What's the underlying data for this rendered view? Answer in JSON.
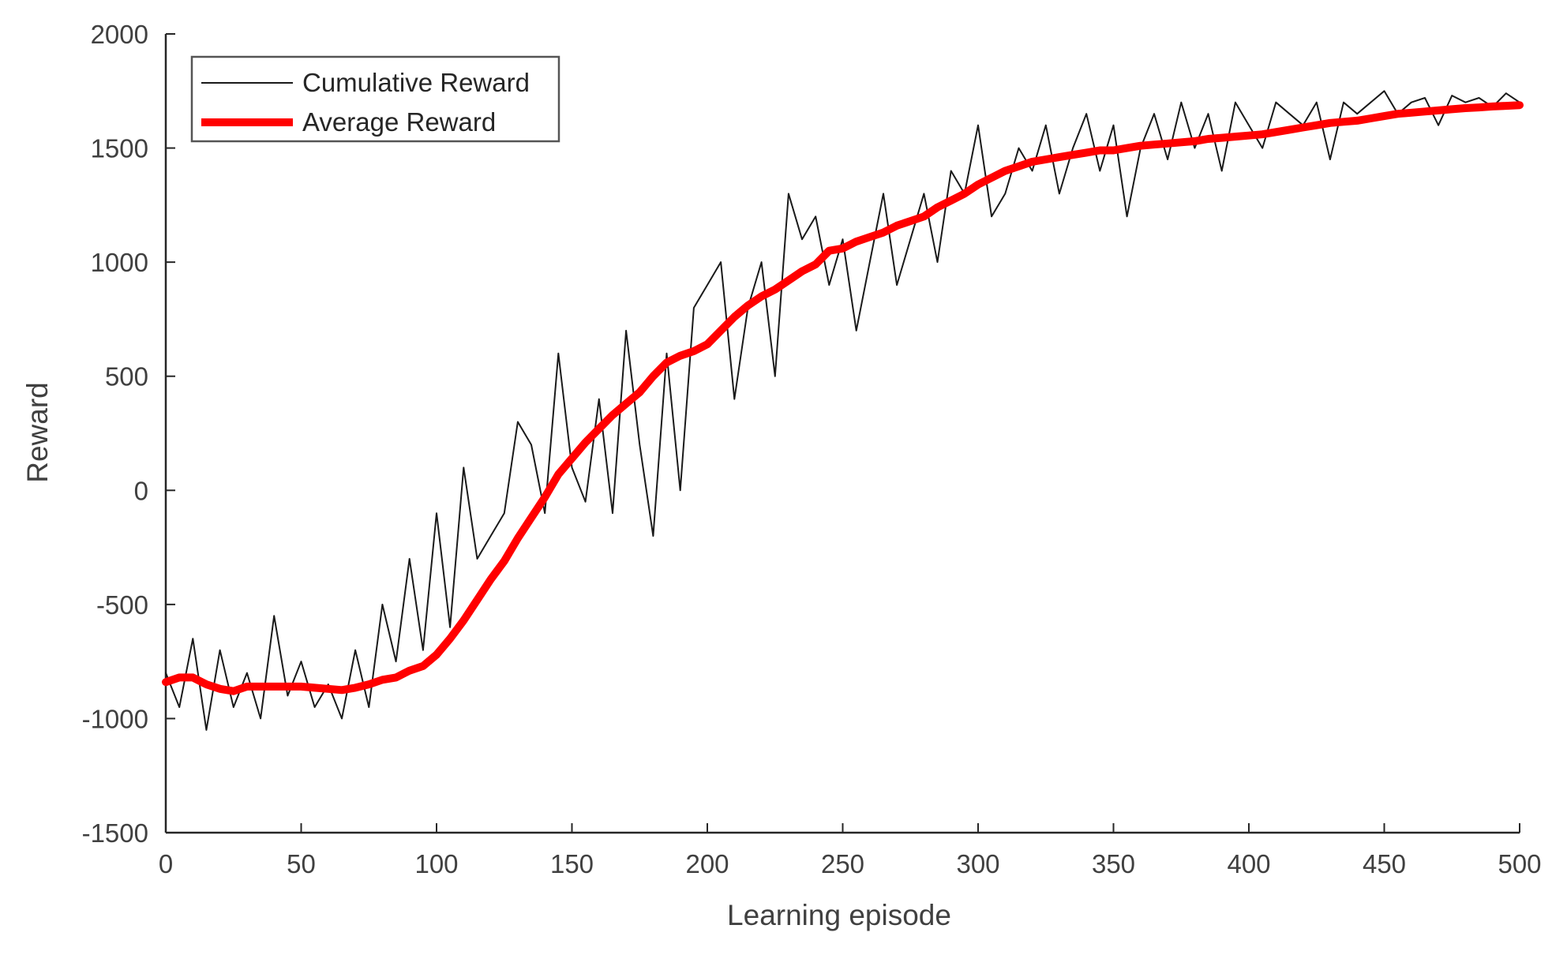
{
  "chart_data": {
    "type": "line",
    "title": "",
    "xlabel": "Learning episode",
    "ylabel": "Reward",
    "xlim": [
      0,
      500
    ],
    "ylim": [
      -1500,
      2000
    ],
    "xticks": [
      0,
      50,
      100,
      150,
      200,
      250,
      300,
      350,
      400,
      450,
      500
    ],
    "yticks": [
      -1500,
      -1000,
      -500,
      0,
      500,
      1000,
      1500,
      2000
    ],
    "grid": false,
    "legend_position": "top-left",
    "series": [
      {
        "name": "Cumulative Reward",
        "color": "#1a1a1a",
        "style": "thin",
        "x": [
          0,
          5,
          10,
          15,
          20,
          25,
          30,
          35,
          40,
          45,
          50,
          55,
          60,
          65,
          70,
          75,
          80,
          85,
          90,
          95,
          100,
          105,
          110,
          115,
          120,
          125,
          130,
          135,
          140,
          145,
          150,
          155,
          160,
          165,
          170,
          175,
          180,
          185,
          190,
          195,
          200,
          205,
          210,
          215,
          220,
          225,
          230,
          235,
          240,
          245,
          250,
          255,
          260,
          265,
          270,
          275,
          280,
          285,
          290,
          295,
          300,
          305,
          310,
          315,
          320,
          325,
          330,
          335,
          340,
          345,
          350,
          355,
          360,
          365,
          370,
          375,
          380,
          385,
          390,
          395,
          400,
          405,
          410,
          415,
          420,
          425,
          430,
          435,
          440,
          445,
          450,
          455,
          460,
          465,
          470,
          475,
          480,
          485,
          490,
          495,
          500
        ],
        "values": [
          -800,
          -950,
          -650,
          -1050,
          -700,
          -950,
          -800,
          -1000,
          -550,
          -900,
          -750,
          -950,
          -850,
          -1000,
          -700,
          -950,
          -500,
          -750,
          -300,
          -700,
          -100,
          -600,
          100,
          -300,
          -200,
          -100,
          300,
          200,
          -100,
          600,
          100,
          -50,
          400,
          -100,
          700,
          200,
          -200,
          600,
          0,
          800,
          900,
          1000,
          400,
          800,
          1000,
          500,
          1300,
          1100,
          1200,
          900,
          1100,
          700,
          1000,
          1300,
          900,
          1100,
          1300,
          1000,
          1400,
          1300,
          1600,
          1200,
          1300,
          1500,
          1400,
          1600,
          1300,
          1500,
          1650,
          1400,
          1600,
          1200,
          1500,
          1650,
          1450,
          1700,
          1500,
          1650,
          1400,
          1700,
          1600,
          1500,
          1700,
          1650,
          1600,
          1700,
          1450,
          1700,
          1650,
          1700,
          1750,
          1650,
          1700,
          1720,
          1600,
          1730,
          1700,
          1720,
          1680,
          1740,
          1700
        ]
      },
      {
        "name": "Average Reward",
        "color": "#ff0000",
        "style": "thick",
        "x": [
          0,
          5,
          10,
          15,
          20,
          25,
          30,
          35,
          40,
          45,
          50,
          55,
          60,
          65,
          70,
          75,
          80,
          85,
          90,
          95,
          100,
          105,
          110,
          115,
          120,
          125,
          130,
          135,
          140,
          145,
          150,
          155,
          160,
          165,
          170,
          175,
          180,
          185,
          190,
          195,
          200,
          205,
          210,
          215,
          220,
          225,
          230,
          235,
          240,
          245,
          250,
          255,
          260,
          265,
          270,
          275,
          280,
          285,
          290,
          295,
          300,
          305,
          310,
          315,
          320,
          325,
          330,
          335,
          340,
          345,
          350,
          355,
          360,
          365,
          370,
          375,
          380,
          385,
          390,
          395,
          400,
          405,
          410,
          415,
          420,
          425,
          430,
          435,
          440,
          445,
          450,
          455,
          460,
          465,
          470,
          475,
          480,
          485,
          490,
          495,
          500
        ],
        "values": [
          -840,
          -820,
          -820,
          -850,
          -870,
          -880,
          -860,
          -860,
          -860,
          -860,
          -860,
          -865,
          -870,
          -875,
          -865,
          -850,
          -830,
          -820,
          -790,
          -770,
          -720,
          -650,
          -570,
          -480,
          -390,
          -310,
          -210,
          -120,
          -30,
          70,
          140,
          210,
          270,
          330,
          380,
          430,
          500,
          560,
          590,
          610,
          640,
          700,
          760,
          810,
          850,
          880,
          920,
          960,
          990,
          1050,
          1060,
          1090,
          1110,
          1130,
          1160,
          1180,
          1200,
          1240,
          1270,
          1300,
          1340,
          1370,
          1400,
          1420,
          1440,
          1450,
          1460,
          1470,
          1480,
          1490,
          1490,
          1500,
          1510,
          1515,
          1520,
          1525,
          1530,
          1540,
          1545,
          1550,
          1555,
          1560,
          1570,
          1580,
          1590,
          1600,
          1610,
          1615,
          1620,
          1630,
          1640,
          1650,
          1655,
          1660,
          1665,
          1670,
          1675,
          1678,
          1682,
          1685,
          1688
        ]
      }
    ]
  }
}
